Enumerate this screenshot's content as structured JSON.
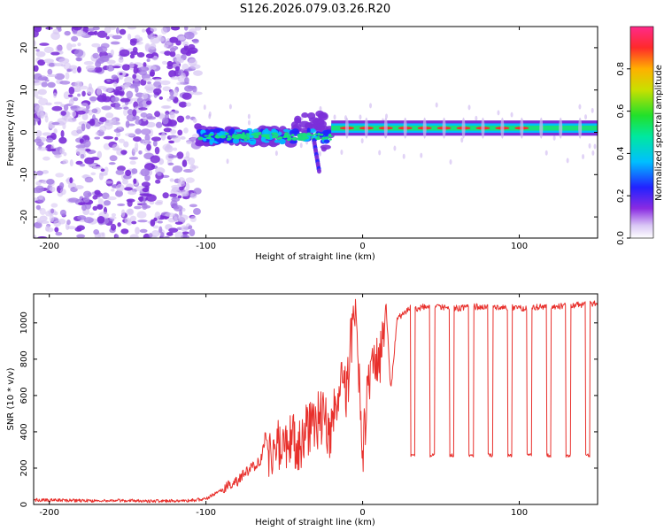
{
  "figure_title": "S126.2026.079.03.26.R20",
  "colors": {
    "snr_line": "#e8302c",
    "spectrum_low": "#7b2fd8",
    "spectrum_mid": "#18e07a",
    "spectrum_high": "#ff2a2a"
  },
  "chart_data": [
    {
      "type": "heatmap",
      "title": "S126.2026.079.03.26.R20",
      "xlabel": "Height of straight line (km)",
      "ylabel": "Frequency (Hz)",
      "xlim": [
        -210,
        150
      ],
      "ylim": [
        -25,
        25
      ],
      "xticks": [
        -200,
        -100,
        0,
        100
      ],
      "yticks": [
        -20,
        -10,
        0,
        10,
        20
      ],
      "colorbar": {
        "label": "Normalized spectral amplitude",
        "range": [
          0,
          1
        ],
        "ticks": [
          0.0,
          0.2,
          0.4,
          0.6,
          0.8
        ]
      },
      "regions": [
        {
          "x_range": [
            -210,
            -105
          ],
          "description": "scattered noise",
          "amplitude": 0.05
        },
        {
          "x_range": [
            -105,
            -20
          ],
          "description": "fragmented signal near 0 Hz",
          "freq_center": -1,
          "amplitude": 0.35
        },
        {
          "x_range": [
            -20,
            150
          ],
          "description": "steady tone near 1 Hz with periodic dropouts",
          "freq_center": 1,
          "amplitude": 0.9
        }
      ]
    },
    {
      "type": "line",
      "xlabel": "Height of straight line (km)",
      "ylabel": "SNR (10 * v/v)",
      "xlim": [
        -210,
        150
      ],
      "ylim": [
        0,
        1160
      ],
      "xticks": [
        -200,
        -100,
        0,
        100
      ],
      "yticks": [
        0,
        200,
        400,
        600,
        800,
        1000
      ],
      "series": [
        {
          "name": "SNR",
          "x": [
            -210,
            -190,
            -170,
            -150,
            -130,
            -110,
            -100,
            -90,
            -80,
            -75,
            -70,
            -65,
            -62,
            -60,
            -55,
            -50,
            -45,
            -40,
            -35,
            -30,
            -25,
            -20,
            -15,
            -10,
            -5,
            0,
            3,
            6,
            9,
            12,
            15,
            18,
            22,
            26,
            30,
            35,
            40,
            45,
            50,
            60,
            70,
            80,
            90,
            100,
            110,
            120,
            130,
            140,
            150
          ],
          "values": [
            25,
            22,
            20,
            22,
            18,
            22,
            30,
            80,
            130,
            170,
            210,
            240,
            380,
            300,
            320,
            280,
            360,
            330,
            420,
            450,
            500,
            380,
            650,
            620,
            1150,
            300,
            620,
            700,
            760,
            800,
            1100,
            620,
            1020,
            1050,
            1080,
            1080,
            1090,
            1085,
            1090,
            1080,
            1090,
            1085,
            1090,
            1080,
            1085,
            1090,
            1095,
            1100,
            1110
          ]
        }
      ],
      "dropouts": {
        "start": 32,
        "spacing": 12.4,
        "count": 10,
        "width": 3,
        "low_value": 270
      }
    }
  ]
}
